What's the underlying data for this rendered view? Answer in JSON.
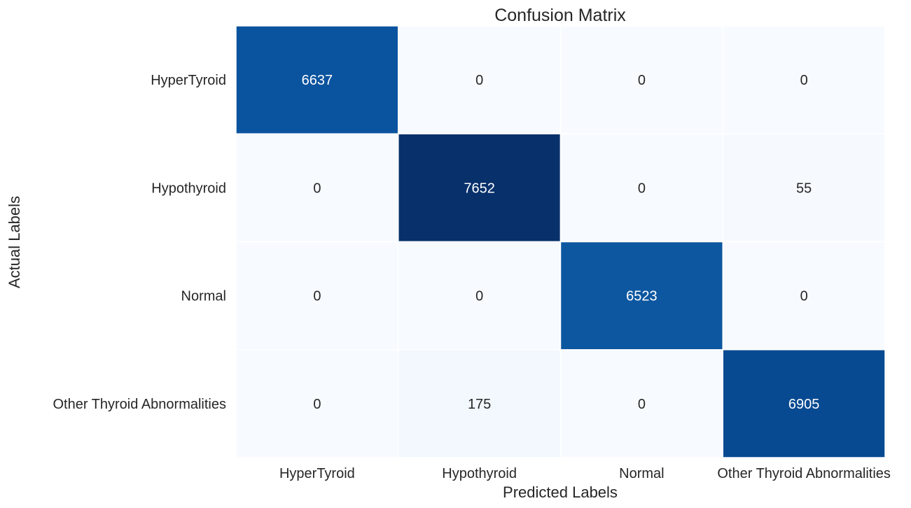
{
  "chart_data": {
    "type": "heatmap",
    "title": "Confusion Matrix",
    "xlabel": "Predicted Labels",
    "ylabel": "Actual Labels",
    "x_categories": [
      "HyperTyroid",
      "Hypothyroid",
      "Normal",
      "Other Thyroid Abnormalities"
    ],
    "y_categories": [
      "HyperTyroid",
      "Hypothyroid",
      "Normal",
      "Other Thyroid Abnormalities"
    ],
    "values": [
      [
        6637,
        0,
        0,
        0
      ],
      [
        0,
        7652,
        0,
        55
      ],
      [
        0,
        0,
        6523,
        0
      ],
      [
        0,
        175,
        0,
        6905
      ]
    ],
    "colormap": "Blues",
    "colorbar": false,
    "annotations": true,
    "cell_border_color": "#ffffff",
    "light_text_color": "#ffffff",
    "dark_text_color": "#262626"
  }
}
